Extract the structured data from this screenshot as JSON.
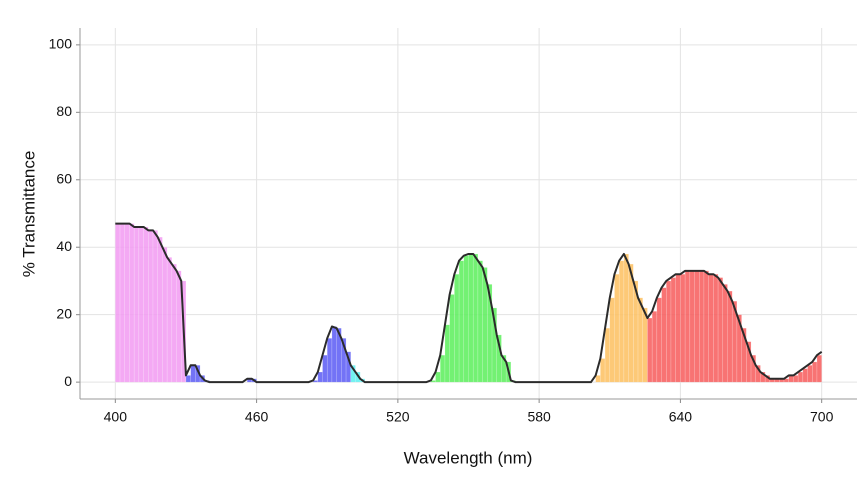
{
  "chart_data": {
    "type": "spectrum",
    "x_label": "Wavelength (nm)",
    "y_label": "% Transmittance",
    "x": [
      400,
      402,
      404,
      406,
      408,
      410,
      412,
      414,
      416,
      418,
      420,
      422,
      424,
      426,
      428,
      430,
      432,
      434,
      436,
      438,
      440,
      442,
      444,
      446,
      448,
      450,
      452,
      454,
      456,
      458,
      460,
      462,
      464,
      466,
      468,
      470,
      472,
      474,
      476,
      478,
      480,
      482,
      484,
      486,
      488,
      490,
      492,
      494,
      496,
      498,
      500,
      502,
      504,
      506,
      508,
      510,
      512,
      514,
      516,
      518,
      520,
      522,
      524,
      526,
      528,
      530,
      532,
      534,
      536,
      538,
      540,
      542,
      544,
      546,
      548,
      550,
      552,
      554,
      556,
      558,
      560,
      562,
      564,
      566,
      568,
      570,
      572,
      574,
      576,
      578,
      580,
      582,
      584,
      586,
      588,
      590,
      592,
      594,
      596,
      598,
      600,
      602,
      604,
      606,
      608,
      610,
      612,
      614,
      616,
      618,
      620,
      622,
      624,
      626,
      628,
      630,
      632,
      634,
      636,
      638,
      640,
      642,
      644,
      646,
      648,
      650,
      652,
      654,
      656,
      658,
      660,
      662,
      664,
      666,
      668,
      670,
      672,
      674,
      676,
      678,
      680,
      682,
      684,
      686,
      688,
      690,
      692,
      694,
      696,
      698,
      700
    ],
    "values": [
      47,
      47,
      47,
      47,
      46,
      46,
      46,
      45,
      45,
      43,
      40,
      37,
      35,
      33,
      30,
      2,
      5,
      5,
      2,
      0.5,
      0,
      0,
      0,
      0,
      0,
      0,
      0,
      0,
      1,
      1,
      0,
      0,
      0,
      0,
      0,
      0,
      0,
      0,
      0,
      0,
      0,
      0,
      0.5,
      3,
      8,
      13,
      16.5,
      16,
      13,
      9,
      5,
      3,
      1,
      0,
      0,
      0,
      0,
      0,
      0,
      0,
      0,
      0,
      0,
      0,
      0,
      0,
      0,
      0.5,
      3,
      8,
      17,
      26,
      32,
      36,
      37.5,
      38,
      38,
      36,
      34,
      29,
      22,
      14,
      8,
      6,
      0.5,
      0,
      0,
      0,
      0,
      0,
      0,
      0,
      0,
      0,
      0,
      0,
      0,
      0,
      0,
      0,
      0,
      0,
      2,
      7,
      16,
      25,
      32,
      36,
      38,
      35,
      30,
      25,
      22,
      19,
      21,
      25,
      28,
      30,
      31,
      32,
      32,
      33,
      33,
      33,
      33,
      33,
      32,
      32,
      31,
      29,
      27,
      24,
      20,
      16,
      12,
      8,
      5,
      3,
      2,
      1,
      1,
      1,
      1,
      2,
      2,
      3,
      4,
      5,
      6,
      8,
      9
    ],
    "line_color": "#2b2b2b",
    "fill_bands": [
      {
        "from": 400,
        "to": 429,
        "color": "#f29af2"
      },
      {
        "from": 429,
        "to": 500,
        "color": "#5a5af5"
      },
      {
        "from": 500,
        "to": 506,
        "color": "#5af0f0"
      },
      {
        "from": 506,
        "to": 570,
        "color": "#5aee5a"
      },
      {
        "from": 570,
        "to": 590,
        "color": "#f0f05a"
      },
      {
        "from": 590,
        "to": 625,
        "color": "#fdbf5f"
      },
      {
        "from": 625,
        "to": 700,
        "color": "#f75a5a"
      }
    ],
    "xlim": [
      385,
      715
    ],
    "ylim": [
      -5,
      105
    ],
    "xticks": [
      400,
      460,
      520,
      580,
      640,
      700
    ],
    "yticks": [
      0,
      20,
      40,
      60,
      80,
      100
    ],
    "grid": true
  }
}
